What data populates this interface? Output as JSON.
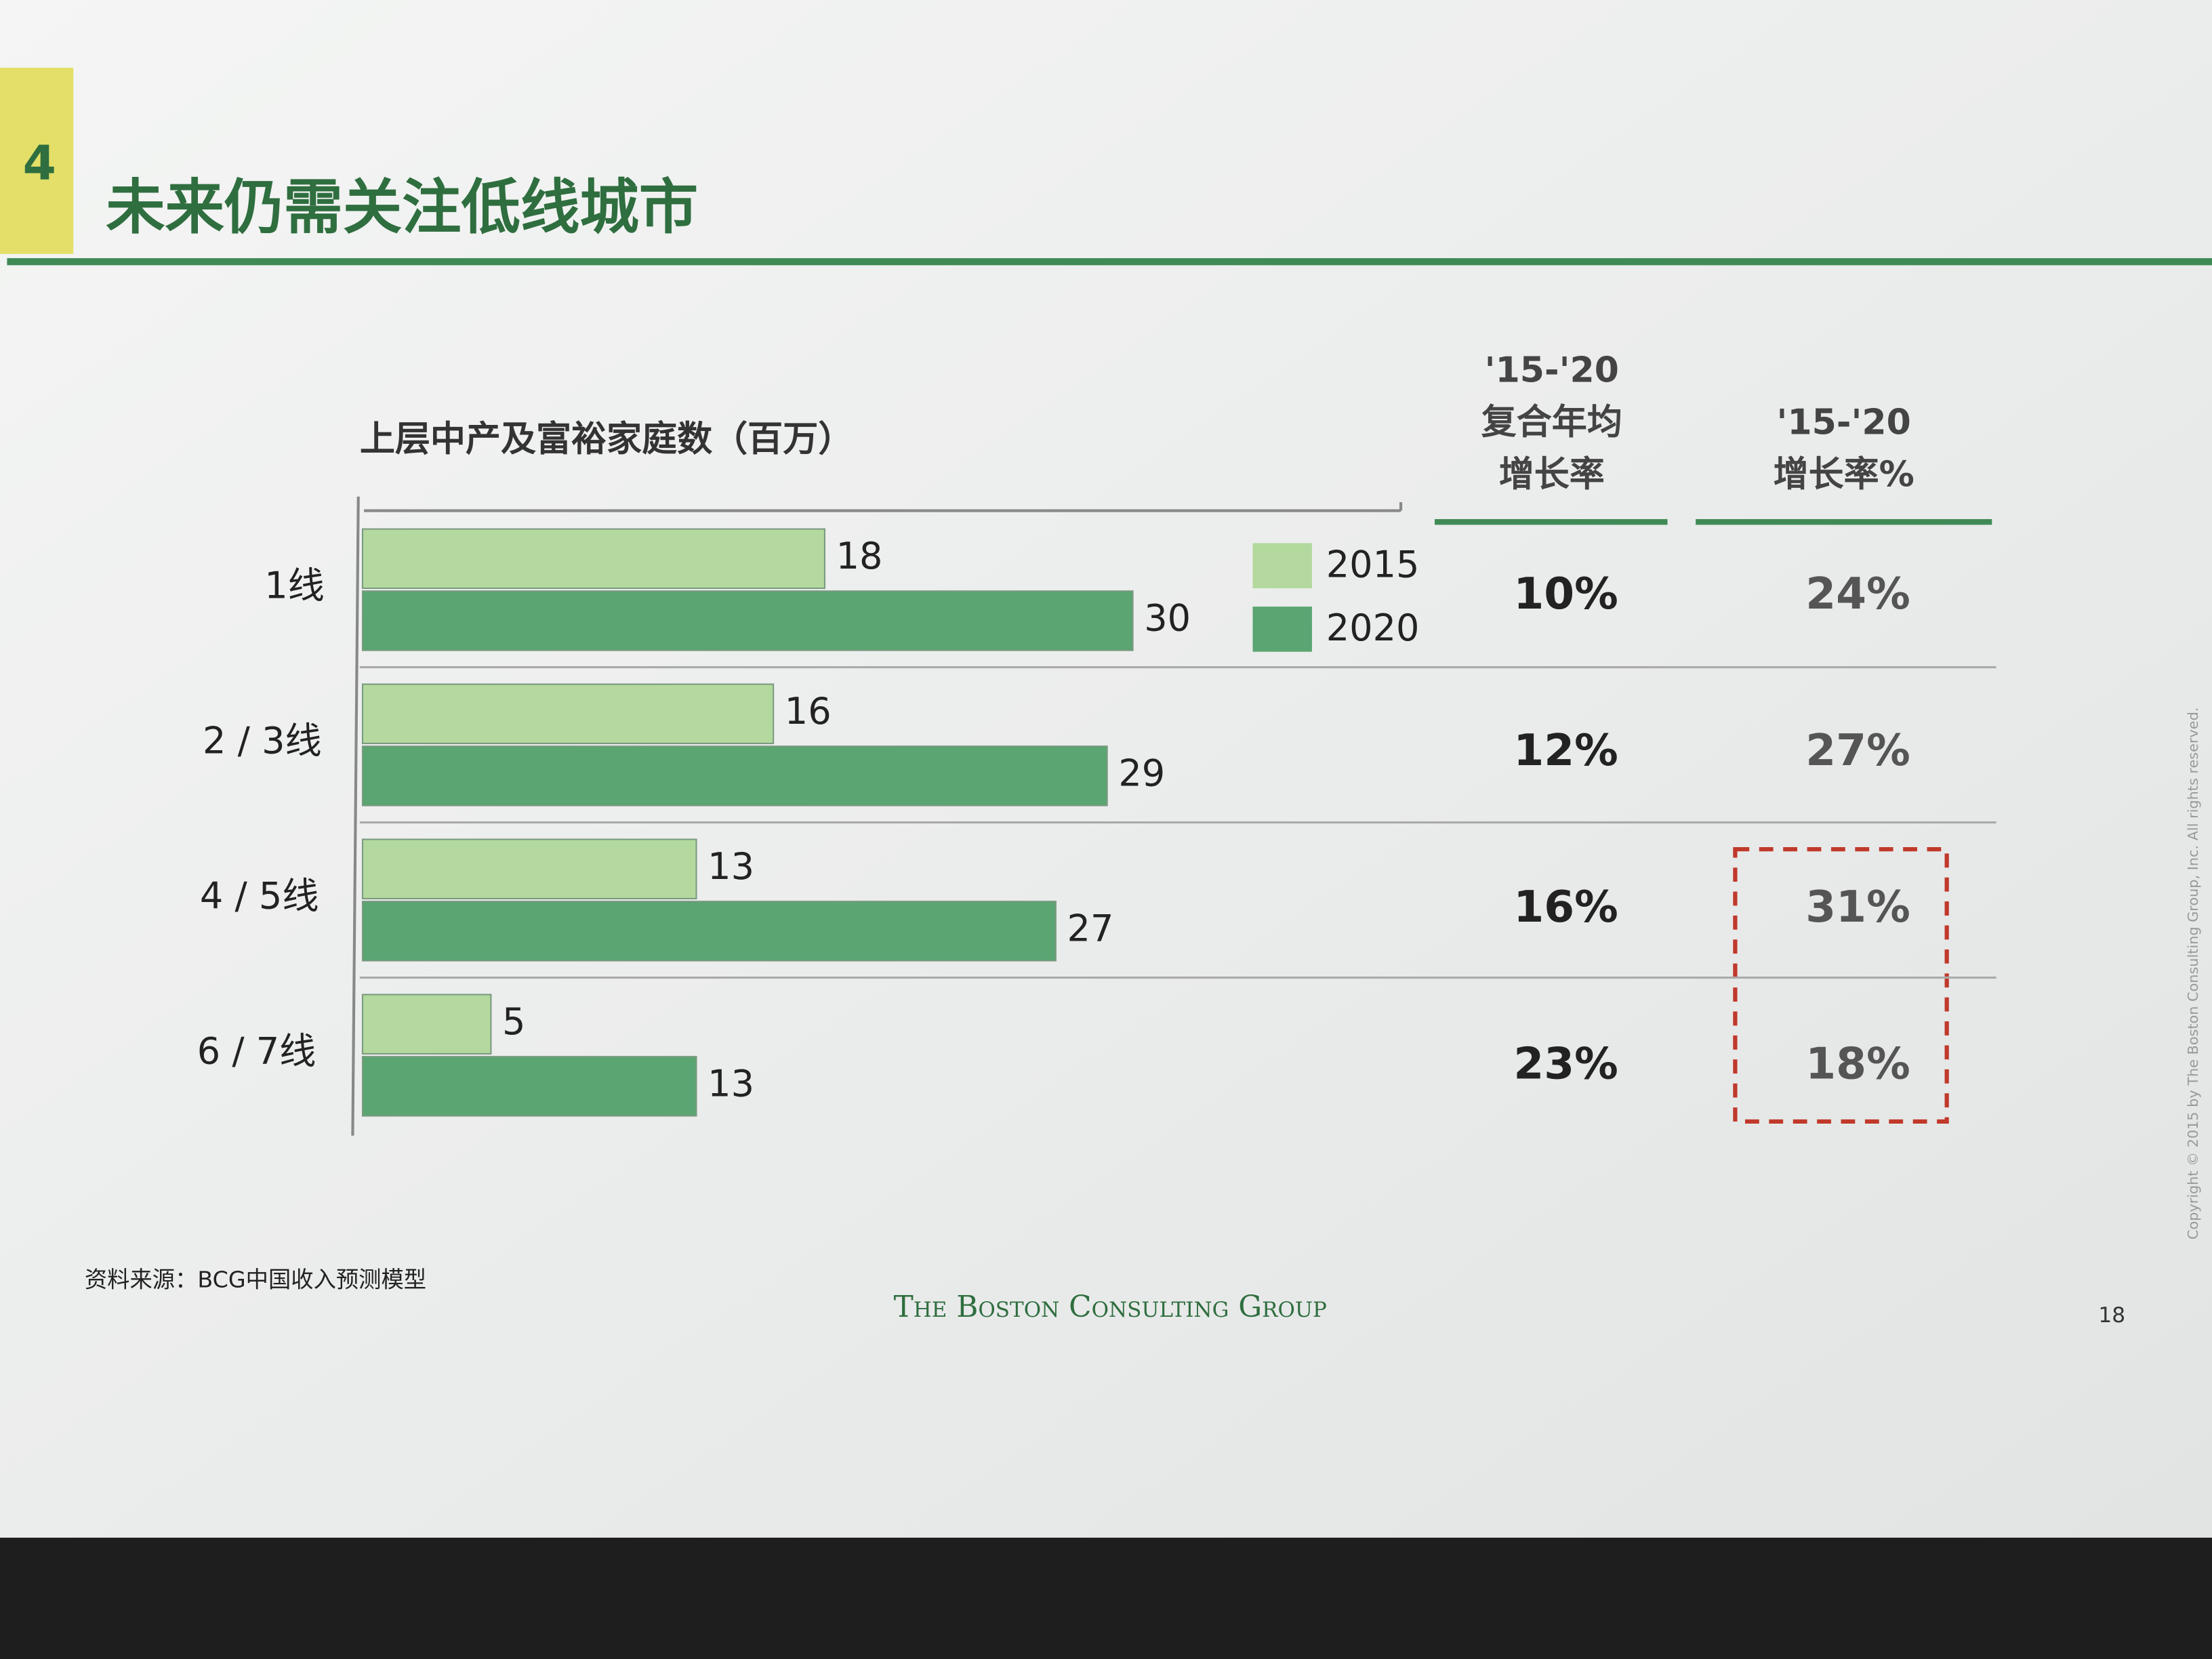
{
  "section_number": "4",
  "slide_title": "未来仍需关注低线城市",
  "chart_data": {
    "type": "bar",
    "orientation": "horizontal",
    "title": "上层中产及富裕家庭数（百万）",
    "categories": [
      "1线",
      "2 / 3线",
      "4 / 5线",
      "6 / 7线"
    ],
    "series": [
      {
        "name": "2015",
        "color": "#b3d99e",
        "values": [
          18,
          16,
          13,
          5
        ]
      },
      {
        "name": "2020",
        "color": "#5aa571",
        "values": [
          30,
          29,
          27,
          13
        ]
      }
    ],
    "xlim": [
      0,
      40
    ],
    "legend": "top-right"
  },
  "table": {
    "columns": [
      {
        "header": [
          "'15-'20",
          "复合年均",
          "增长率"
        ],
        "values": [
          "10%",
          "12%",
          "16%",
          "23%"
        ]
      },
      {
        "header": [
          "'15-'20",
          "增长率%"
        ],
        "values": [
          "24%",
          "27%",
          "31%",
          "18%"
        ]
      }
    ]
  },
  "source": "资料来源：BCG中国收入预测模型",
  "footer": "The Boston Consulting Group",
  "page_number": "18",
  "copyright": "Copyright © 2015 by The Boston Consulting Group, Inc. All rights reserved."
}
